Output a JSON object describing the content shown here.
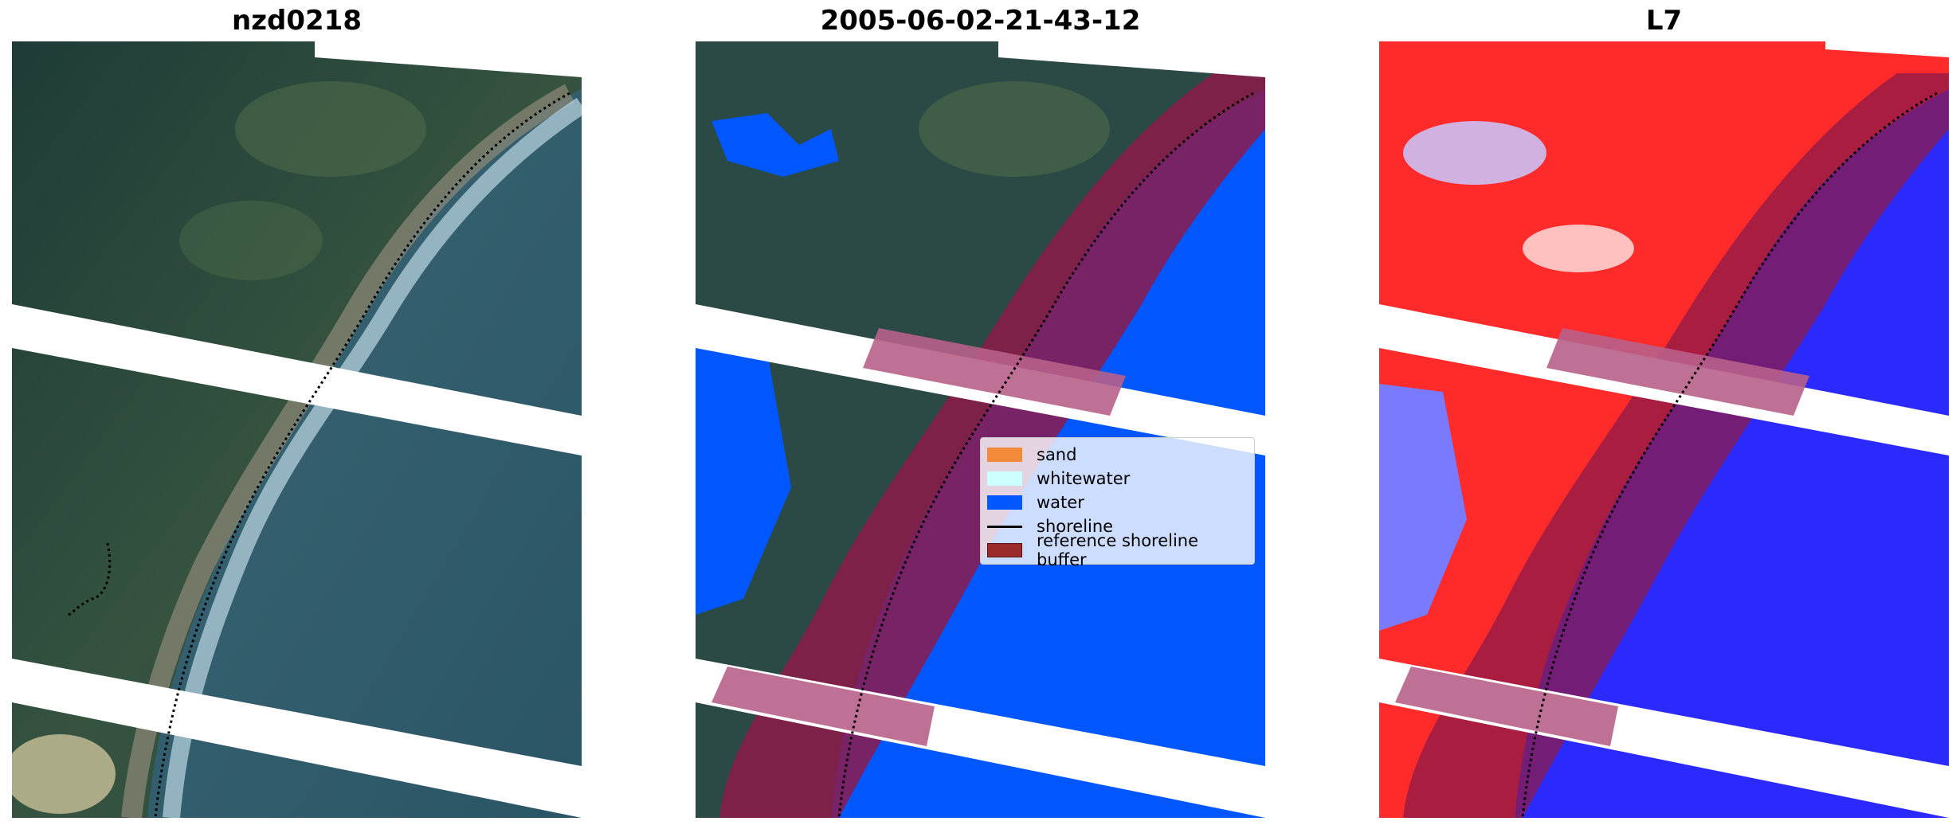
{
  "panels": [
    {
      "title": "nzd0218",
      "style": "rgb"
    },
    {
      "title": "2005-06-02-21-43-12",
      "style": "classified"
    },
    {
      "title": "L7",
      "style": "index"
    }
  ],
  "legend": {
    "items": [
      {
        "label": "sand",
        "color": "#f28a3a",
        "kind": "patch"
      },
      {
        "label": "whitewater",
        "color": "#ccffff",
        "kind": "patch"
      },
      {
        "label": "water",
        "color": "#0057ff",
        "kind": "patch"
      },
      {
        "label": "shoreline",
        "color": "#000000",
        "kind": "line"
      },
      {
        "label": "reference shoreline buffer",
        "color": "#9b2a2a",
        "kind": "patch"
      }
    ]
  },
  "colors": {
    "land_dark": "#1f3a35",
    "land_green": "#3f5b44",
    "sea": "#2f5a6a",
    "surf": "#a8c6d6",
    "water_mask": "#0057ff",
    "buffer": "#8c1a4a",
    "index_red": "#ff1a1a",
    "index_blue": "#2020ff"
  }
}
